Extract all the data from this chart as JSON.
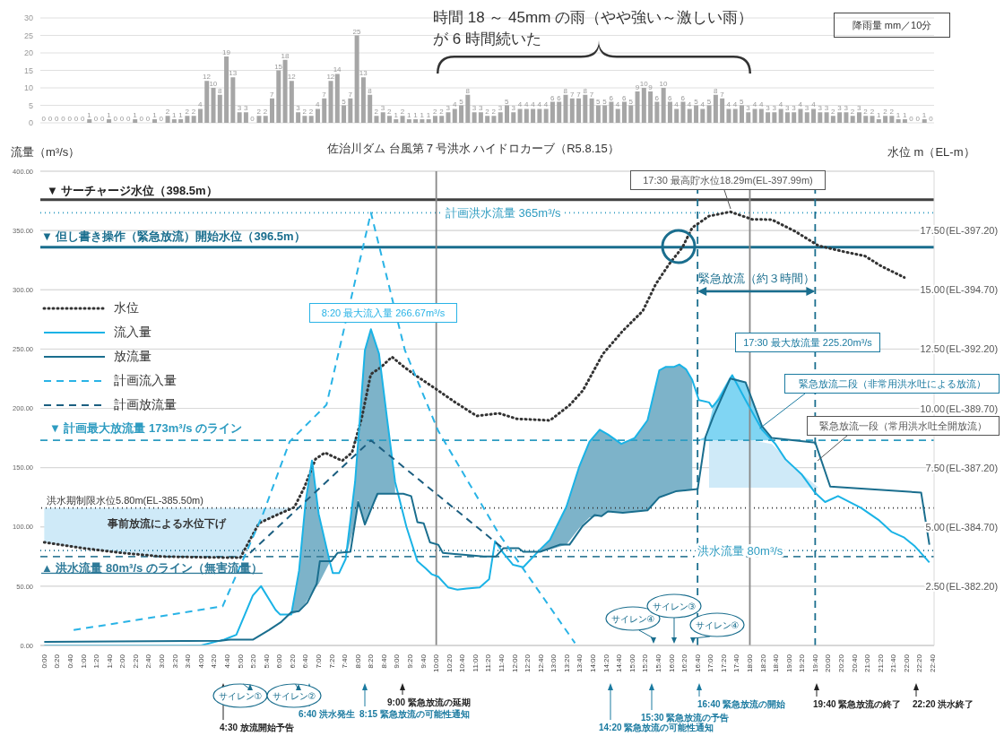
{
  "chart_data": [
    {
      "type": "bar",
      "ylabel": "降雨量 mm／10分",
      "annotations": [
        "時間 18 ～ 45mm の雨（やや強い～激しい雨）が 6 時間続いた"
      ],
      "categories": [
        null,
        null,
        null,
        null,
        null,
        null,
        null,
        null,
        null,
        null,
        null,
        null,
        null,
        null,
        null,
        null,
        null,
        null,
        null,
        null,
        null,
        null,
        null,
        null,
        null,
        null,
        null,
        null,
        null,
        null,
        null,
        null,
        null,
        null,
        null,
        null,
        null,
        null,
        null,
        null,
        null,
        null,
        null,
        null,
        null,
        null,
        null,
        null,
        null,
        null,
        null,
        null,
        null,
        null,
        null,
        null,
        null,
        null,
        null,
        null,
        null,
        null,
        null,
        null,
        null,
        null,
        null,
        null,
        null,
        null,
        null,
        null,
        null,
        null,
        null,
        null,
        null,
        null,
        null,
        null,
        null,
        null,
        null,
        null,
        null,
        null,
        null,
        null,
        null,
        null,
        null,
        null,
        null,
        null,
        null,
        null,
        null,
        null,
        null,
        null,
        null,
        null,
        null,
        null,
        null,
        null,
        null,
        null,
        null,
        null,
        null,
        null,
        null,
        null,
        null,
        null,
        null,
        null,
        null,
        null,
        null,
        null,
        null,
        null,
        null,
        null,
        null,
        null,
        null,
        null,
        null,
        null,
        null,
        null,
        null,
        null,
        null
      ],
      "values": [
        0,
        0,
        0,
        0,
        0,
        0,
        0,
        1,
        0,
        0,
        1,
        0,
        0,
        0,
        1,
        0,
        0,
        1,
        0,
        2,
        1,
        1,
        2,
        2,
        4,
        12,
        10,
        8,
        19,
        13,
        3,
        3,
        0,
        2,
        2,
        7,
        15,
        18,
        12,
        3,
        2,
        2,
        4,
        7,
        12,
        14,
        5,
        7,
        25,
        13,
        8,
        2,
        3,
        2,
        1,
        2,
        1,
        1,
        1,
        1,
        2,
        2,
        3,
        4,
        5,
        8,
        3,
        3,
        2,
        2,
        3,
        5,
        3,
        4,
        4,
        4,
        4,
        4,
        6,
        6,
        8,
        7,
        7,
        8,
        7,
        5,
        5,
        6,
        4,
        6,
        5,
        9,
        10,
        9,
        6,
        10,
        6,
        4,
        6,
        4,
        5,
        4,
        5,
        8,
        7,
        4,
        4,
        5,
        3,
        4,
        4,
        3,
        3,
        4,
        3,
        3,
        4,
        3,
        4,
        3,
        3,
        2,
        3,
        3,
        2,
        3,
        2,
        2,
        1,
        2,
        2,
        1,
        1,
        0,
        0,
        1,
        0
      ],
      "color": "#a6a6a6",
      "ylim": [
        0,
        30
      ],
      "yticks": [
        0,
        5,
        10,
        15,
        20,
        25,
        30
      ],
      "grid": "y",
      "data_labels": true,
      "tick_labels": "y"
    },
    {
      "type": "line",
      "title": "佐治川ダム 台風第７号洪水 ハイドロカーブ（R5.8.15）",
      "ylabel": "流量（m³/s）",
      "y2label": "水位 m（EL-m）",
      "xlim": [
        -0.1,
        22.7
      ],
      "xticks": [
        {
          "value": 0,
          "label": "0:00"
        },
        {
          "value": 0.3333,
          "label": "0:20"
        },
        {
          "value": 0.6667,
          "label": "0:40"
        },
        {
          "value": 1,
          "label": "1:00"
        },
        {
          "value": 1.3333,
          "label": "1:20"
        },
        {
          "value": 1.6667,
          "label": "1:40"
        },
        {
          "value": 2,
          "label": "2:00"
        },
        {
          "value": 2.3333,
          "label": "2:20"
        },
        {
          "value": 2.6667,
          "label": "2:40"
        },
        {
          "value": 3,
          "label": "3:00"
        },
        {
          "value": 3.3333,
          "label": "3:20"
        },
        {
          "value": 3.6667,
          "label": "3:40"
        },
        {
          "value": 4,
          "label": "4:00"
        },
        {
          "value": 4.3333,
          "label": "4:20"
        },
        {
          "value": 4.6667,
          "label": "4:40"
        },
        {
          "value": 5,
          "label": "5:00"
        },
        {
          "value": 5.3333,
          "label": "5:20"
        },
        {
          "value": 5.6667,
          "label": "5:40"
        },
        {
          "value": 6,
          "label": "6:00"
        },
        {
          "value": 6.3333,
          "label": "6:20"
        },
        {
          "value": 6.6667,
          "label": "6:40"
        },
        {
          "value": 7,
          "label": "7:00"
        },
        {
          "value": 7.3333,
          "label": "7:20"
        },
        {
          "value": 7.6667,
          "label": "7:40"
        },
        {
          "value": 8,
          "label": "8:00"
        },
        {
          "value": 8.3333,
          "label": "8:20"
        },
        {
          "value": 8.6667,
          "label": "8:40"
        },
        {
          "value": 9,
          "label": "9:00"
        },
        {
          "value": 9.3333,
          "label": "9:20"
        },
        {
          "value": 9.6667,
          "label": "9:40"
        },
        {
          "value": 10,
          "label": "10:00"
        },
        {
          "value": 10.3333,
          "label": "10:20"
        },
        {
          "value": 10.6667,
          "label": "10:40"
        },
        {
          "value": 11,
          "label": "11:00"
        },
        {
          "value": 11.3333,
          "label": "11:20"
        },
        {
          "value": 11.6667,
          "label": "11:40"
        },
        {
          "value": 12,
          "label": "12:00"
        },
        {
          "value": 12.3333,
          "label": "12:20"
        },
        {
          "value": 12.6667,
          "label": "12:40"
        },
        {
          "value": 13,
          "label": "13:00"
        },
        {
          "value": 13.3333,
          "label": "13:20"
        },
        {
          "value": 13.6667,
          "label": "13:40"
        },
        {
          "value": 14,
          "label": "14:00"
        },
        {
          "value": 14.3333,
          "label": "14:20"
        },
        {
          "value": 14.6667,
          "label": "14:40"
        },
        {
          "value": 15,
          "label": "15:00"
        },
        {
          "value": 15.3333,
          "label": "15:20"
        },
        {
          "value": 15.6667,
          "label": "15:40"
        },
        {
          "value": 16,
          "label": "16:00"
        },
        {
          "value": 16.3333,
          "label": "16:20"
        },
        {
          "value": 16.6667,
          "label": "16:40"
        },
        {
          "value": 17,
          "label": "17:00"
        },
        {
          "value": 17.3333,
          "label": "17:20"
        },
        {
          "value": 17.6667,
          "label": "17:40"
        },
        {
          "value": 18,
          "label": "18:00"
        },
        {
          "value": 18.3333,
          "label": "18:20"
        },
        {
          "value": 18.6667,
          "label": "18:40"
        },
        {
          "value": 19,
          "label": "19:00"
        },
        {
          "value": 19.3333,
          "label": "19:20"
        },
        {
          "value": 19.6667,
          "label": "19:40"
        },
        {
          "value": 20,
          "label": "20:00"
        },
        {
          "value": 20.3333,
          "label": "20:20"
        },
        {
          "value": 20.6667,
          "label": "20:40"
        },
        {
          "value": 21,
          "label": "21:00"
        },
        {
          "value": 21.3333,
          "label": "21:20"
        },
        {
          "value": 21.6667,
          "label": "21:40"
        },
        {
          "value": 22,
          "label": "22:00"
        },
        {
          "value": 22.3333,
          "label": "22:20"
        },
        {
          "value": 22.6667,
          "label": "22:40"
        }
      ],
      "ylim": [
        0,
        400
      ],
      "yticks": [
        {
          "value": 0,
          "label": "0.00"
        },
        {
          "value": 50,
          "label": "50.00"
        },
        {
          "value": 100,
          "label": "100.00"
        },
        {
          "value": 150,
          "label": "150.00"
        },
        {
          "value": 200,
          "label": "200.00"
        },
        {
          "value": 250,
          "label": "250.00"
        },
        {
          "value": 300,
          "label": "300.00"
        },
        {
          "value": 350,
          "label": "350.00"
        },
        {
          "value": 400,
          "label": "400.00"
        }
      ],
      "y2lim": [
        0,
        20
      ],
      "y2ticks": [
        {
          "value": 2.5,
          "label": "2.50"
        },
        {
          "value": 5,
          "label": "5.00"
        },
        {
          "value": 7.5,
          "label": "7.50"
        },
        {
          "value": 10,
          "label": "10.00"
        },
        {
          "value": 12.5,
          "label": "12.50"
        },
        {
          "value": 15,
          "label": "15.00"
        },
        {
          "value": 17.5,
          "label": "17.50"
        }
      ],
      "grid": "y",
      "legend": "left",
      "ref_lines": [
        {
          "axis": "y2",
          "value": 18.8,
          "label": "▼ サーチャージ水位（398.5m）",
          "color": "#404040",
          "line_style": "solid"
        },
        {
          "axis": "y2",
          "value": 16.8,
          "label": "▼ 但し書き操作（緊急放流）開始水位（396.5m）",
          "color": "#1a6e8e",
          "line_style": "solid"
        },
        {
          "axis": "y",
          "value": 365,
          "label": "計画洪水流量 365m³/s",
          "color": "#2e9cc1",
          "line_style": "dotted"
        },
        {
          "axis": "y",
          "value": 173,
          "label": "▼ 計画最大放流量 173m³/s のライン",
          "color": "#2e9cc1",
          "line_style": "dashed"
        },
        {
          "axis": "y",
          "value": 75,
          "label": "▲ 洪水流量 80m³/s のライン（無害流量）",
          "color": "#3a7f9a",
          "line_style": "dashed"
        },
        {
          "axis": "y",
          "value": 80,
          "label": "洪水流量 80m³/s",
          "color": "#1a6e8e",
          "line_style": "dotted"
        },
        {
          "axis": "y2",
          "value": 5.8,
          "label": "洪水期制限水位5.80m(EL-385.50m)",
          "color": "#333333",
          "line_style": "dotted"
        },
        {
          "axis": "x",
          "value": 10,
          "color": "#888888",
          "line_style": "solid"
        },
        {
          "axis": "x",
          "value": 18,
          "color": "#888888",
          "line_style": "solid"
        },
        {
          "axis": "x",
          "value": 16.6667,
          "color": "#1a6e8e",
          "line_style": "dashed"
        },
        {
          "axis": "x",
          "value": 19.6667,
          "color": "#1a6e8e",
          "line_style": "dashed"
        }
      ],
      "annotations": [
        "8:20 最大流入量 266.67m³/s",
        "17:30 最高貯水位18.29m(EL-397.99m)",
        "17:30 最大放流量 225.20m³/s",
        {
          "text": "緊急放流二段（非常用洪水吐による放流）",
          "x": 18.25,
          "y": 183
        },
        "緊急放流一段（常用洪水吐全開放流）",
        "事前放流による水位下げ",
        "緊急放流（約３時間）",
        "4:30 放流開始予告",
        "6:40 洪水発生",
        "8:15 緊急放流の可能性通知",
        "9:00 緊急放流の延期",
        "14:20 緊急放流の可能性通知",
        "15:30 緊急放流の予告",
        "22:20 洪水終了",
        "16:40 緊急放流の開始",
        "19:40 緊急放流の終了",
        "サイレン①",
        "サイレン②",
        "サイレン④",
        "サイレン③",
        "サイレン④",
        "(EL-382.20)",
        "(EL-384.70)",
        "(EL-387.20)",
        "(EL-389.70)",
        "(EL-392.20)",
        "(EL-394.70)",
        "(EL-397.20)"
      ],
      "series": [
        {
          "name": "水位",
          "axis": "y2",
          "color": "#333333",
          "line_style": "dotted",
          "lower": [
            4.35,
            4.1,
            3.9,
            3.75,
            3.72,
            3.7,
            5.16,
            5.48,
            5.8,
            null,
            null,
            null,
            null,
            null,
            null,
            null,
            null,
            null,
            null,
            null,
            null,
            null,
            null,
            null,
            null,
            null,
            null,
            null,
            null,
            null,
            null,
            null,
            null,
            null,
            null,
            6.65,
            6.65,
            6.65,
            6.65,
            6.65,
            6.65,
            null,
            null,
            null,
            null
          ],
          "upper": [
            5.8,
            5.8,
            5.8,
            5.8,
            5.8,
            5.8,
            5.8,
            5.8,
            5.8,
            null,
            null,
            null,
            null,
            null,
            null,
            null,
            null,
            null,
            null,
            null,
            null,
            null,
            null,
            null,
            null,
            null,
            null,
            null,
            null,
            null,
            null,
            null,
            null,
            null,
            null,
            8.65,
            8.65,
            8.65,
            8.5,
            7.5,
            6.65,
            null,
            null,
            null,
            null
          ],
          "x": [
            0,
            1,
            2,
            3,
            4,
            5,
            5.48,
            5.9,
            6.38,
            6.63,
            6.92,
            7.16,
            7.6,
            7.85,
            8.1,
            8.33,
            8.58,
            8.87,
            9.16,
            9.48,
            9.98,
            10.46,
            11.03,
            11.6,
            12.05,
            12.9,
            13.4,
            13.74,
            14.25,
            14.76,
            15.27,
            15.6,
            15.94,
            16.28,
            16.53,
            16.96,
            17.5,
            18.06,
            18.56,
            19.15,
            19.75,
            20.34,
            20.94,
            21.35,
            21.94
          ],
          "values": [
            4.35,
            4.1,
            3.9,
            3.75,
            3.72,
            3.7,
            5.16,
            5.48,
            5.83,
            6.65,
            7.86,
            8.13,
            7.79,
            8.13,
            9.6,
            11.44,
            11.72,
            12.17,
            11.77,
            11.38,
            10.83,
            10.28,
            9.68,
            9.79,
            9.56,
            9.49,
            10.13,
            10.75,
            12.29,
            13.27,
            14.11,
            15.24,
            16.08,
            16.79,
            17.62,
            18.11,
            18.29,
            17.97,
            17.96,
            17.47,
            16.86,
            16.63,
            16.42,
            16.0,
            15.52
          ]
        },
        {
          "name": "流入量",
          "color": "#1ab3e6",
          "line_style": "solid",
          "lower": [
            null,
            null,
            null,
            null,
            null,
            null,
            null,
            null,
            26,
            29,
            36,
            45,
            52,
            70,
            null,
            null,
            73,
            104,
            123,
            102,
            115,
            128,
            128,
            128,
            null,
            null,
            null,
            null,
            null,
            null,
            null,
            null,
            null,
            null,
            null,
            null,
            null,
            null,
            79,
            81,
            85,
            99,
            108,
            109,
            113,
            112,
            113,
            114,
            125,
            127,
            130,
            130,
            131,
            131,
            null,
            null,
            null,
            null,
            null,
            null,
            null,
            null,
            null,
            null,
            null,
            null,
            null,
            null,
            null,
            null,
            null,
            null,
            null
          ],
          "upper": [
            null,
            null,
            null,
            null,
            null,
            null,
            null,
            null,
            26,
            63,
            122,
            156,
            111,
            71,
            null,
            null,
            73,
            138,
            173,
            249,
            266.67,
            246,
            190,
            138,
            null,
            null,
            null,
            null,
            null,
            null,
            null,
            null,
            null,
            null,
            null,
            null,
            null,
            null,
            81,
            89,
            117,
            151,
            172,
            182,
            178,
            170,
            175,
            190,
            232,
            235,
            235,
            237,
            233,
            224,
            null,
            null,
            null,
            null,
            null,
            null,
            null,
            null,
            null,
            null,
            null,
            null,
            null,
            null,
            null,
            null,
            null,
            null,
            null
          ],
          "x": [
            0,
            4,
            4.59,
            4.9,
            5.32,
            5.53,
            5.9,
            6.02,
            6.3,
            6.5,
            6.67,
            6.83,
            7.0,
            7.28,
            7.36,
            7.52,
            7.69,
            7.93,
            8.01,
            8.18,
            8.3333,
            8.54,
            8.75,
            8.95,
            9.24,
            9.52,
            9.73,
            9.89,
            10.05,
            10.3,
            10.54,
            10.78,
            11.11,
            11.35,
            11.5,
            11.71,
            11.96,
            12.22,
            12.65,
            12.9,
            13.32,
            13.65,
            13.91,
            14.17,
            14.38,
            14.72,
            15.06,
            15.39,
            15.69,
            15.86,
            16.07,
            16.2,
            16.37,
            16.53,
            16.7,
            16.96,
            17.04,
            17.22,
            17.55,
            17.89,
            18.31,
            18.65,
            18.91,
            19.33,
            19.66,
            19.92,
            20.25,
            20.84,
            21.28,
            21.61,
            21.94,
            22.2,
            22.58
          ],
          "values": [
            0,
            0,
            5,
            9,
            42,
            50,
            30,
            26,
            26,
            63,
            122,
            156,
            111,
            71,
            61,
            61,
            73,
            138,
            173,
            249,
            266.67,
            246,
            190,
            138,
            100,
            71,
            65,
            60,
            58,
            49,
            47,
            48,
            49,
            56,
            88,
            78,
            68,
            66,
            81,
            89,
            117,
            151,
            172,
            182,
            178,
            170,
            175,
            190,
            232,
            235,
            235,
            237,
            233,
            224,
            207,
            205,
            201,
            208,
            228,
            207,
            182,
            170,
            157,
            144,
            129,
            121,
            126,
            116,
            106,
            96,
            91,
            84,
            70
          ]
        },
        {
          "name": "放流量",
          "color": "#1a6e8e",
          "line_style": "solid",
          "lower": [
            null,
            null,
            null,
            null,
            null,
            null,
            null,
            null,
            null,
            null,
            null,
            null,
            null,
            null,
            null,
            null,
            null,
            null,
            null,
            null,
            null,
            null,
            null,
            null,
            null,
            null,
            null,
            null,
            null,
            null,
            null,
            null,
            null,
            null,
            null,
            null,
            null,
            null,
            null,
            null,
            173,
            173,
            173,
            173,
            173,
            173,
            173,
            null,
            null,
            null,
            null
          ],
          "upper": [
            null,
            null,
            null,
            null,
            null,
            null,
            null,
            null,
            null,
            null,
            null,
            null,
            null,
            null,
            null,
            null,
            null,
            null,
            null,
            null,
            null,
            null,
            null,
            null,
            null,
            null,
            null,
            null,
            null,
            null,
            null,
            null,
            null,
            null,
            null,
            null,
            null,
            null,
            null,
            null,
            173,
            176,
            203,
            227,
            222,
            185,
            173,
            null,
            null,
            null,
            null
          ],
          "x": [
            0,
            4.5,
            4.75,
            5.33,
            5.73,
            6.05,
            6.3,
            6.5,
            6.71,
            6.95,
            7.03,
            7.32,
            7.48,
            7.81,
            8.01,
            8.18,
            8.5,
            9.16,
            9.36,
            9.52,
            9.68,
            9.84,
            10.05,
            10.17,
            11.21,
            11.52,
            11.71,
            12.1,
            12.22,
            12.65,
            13.15,
            13.4,
            13.74,
            14.04,
            14.21,
            14.38,
            14.76,
            15.39,
            15.69,
            16.11,
            16.67,
            16.87,
            17.08,
            17.5,
            17.89,
            18.31,
            18.56,
            19.67,
            20.05,
            22.37,
            22.58
          ],
          "values": [
            3,
            4,
            5,
            5,
            13,
            20,
            28,
            29,
            36,
            52,
            71,
            71,
            78,
            79,
            121,
            102,
            128,
            128,
            126,
            104,
            103,
            87,
            85,
            78,
            75,
            75,
            82,
            82,
            79,
            79,
            85,
            85,
            101,
            110,
            109,
            113,
            112,
            114,
            125,
            130,
            132,
            176,
            194,
            225.2,
            222,
            185,
            175,
            171,
            134,
            129,
            85
          ]
        },
        {
          "name": "計画流入量",
          "color": "#29b3e6",
          "line_style": "dashed",
          "x": [
            0.75,
            4.55,
            5.57,
            6.26,
            7.2,
            8.3333,
            9.2,
            10.05,
            11.6,
            13.54
          ],
          "values": [
            13,
            33,
            110,
            172,
            203,
            365,
            249,
            181,
            94,
            2
          ]
        },
        {
          "name": "計画放流量",
          "color": "#1b5e80",
          "line_style": "dashed",
          "x": [
            5.25,
            8.3333,
            11.7
          ],
          "values": [
            78,
            173,
            82
          ]
        }
      ]
    }
  ]
}
